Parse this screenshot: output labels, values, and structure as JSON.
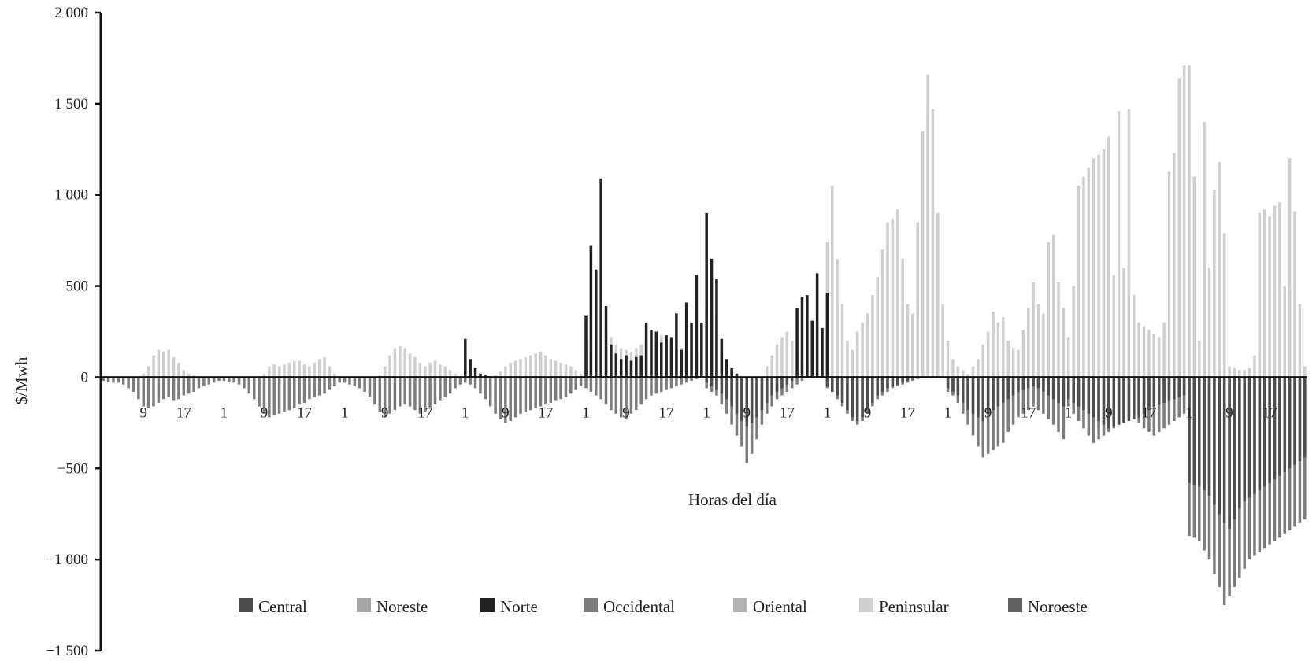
{
  "chart_data": {
    "type": "bar",
    "stacked": false,
    "title": "",
    "xlabel": "Horas del día",
    "ylabel": "$/Mwh",
    "ylim": [
      -1500,
      2000
    ],
    "yticks": [
      -1500,
      -1000,
      -500,
      0,
      500,
      1000,
      1500,
      2000
    ],
    "ytick_labels": [
      "−1 500",
      "−1 000",
      "−500",
      "0",
      "500",
      "1 000",
      "1 500",
      "2 000"
    ],
    "x_tick_hours": [
      1,
      9,
      17
    ],
    "days": 10,
    "hours_per_day": 24,
    "grid": false,
    "legend_position": "bottom",
    "series": [
      {
        "name": "Central",
        "color": "#4d4d4d"
      },
      {
        "name": "Noreste",
        "color": "#a8a8a8"
      },
      {
        "name": "Norte",
        "color": "#222222"
      },
      {
        "name": "Occidental",
        "color": "#7c7c7c"
      },
      {
        "name": "Oriental",
        "color": "#b2b2b2"
      },
      {
        "name": "Peninsular",
        "color": "#cfcfcf"
      },
      {
        "name": "Noroeste",
        "color": "#606060"
      }
    ],
    "daily_profile": [
      {
        "day": 1,
        "Peninsular": [
          0,
          0,
          0,
          0,
          0,
          0,
          0,
          0,
          20,
          60,
          120,
          150,
          140,
          150,
          110,
          80,
          40,
          20,
          10,
          0,
          0,
          0,
          0,
          0
        ],
        "Occidental": [
          -20,
          -25,
          -30,
          -30,
          -40,
          -60,
          -80,
          -120,
          -160,
          -170,
          -160,
          -140,
          -120,
          -110,
          -130,
          -120,
          -100,
          -90,
          -80,
          -60,
          -50,
          -40,
          -30,
          -20
        ]
      },
      {
        "day": 2,
        "Peninsular": [
          0,
          0,
          0,
          0,
          0,
          0,
          0,
          0,
          20,
          60,
          70,
          60,
          70,
          80,
          90,
          90,
          70,
          60,
          80,
          100,
          110,
          60,
          20,
          0
        ],
        "Occidental": [
          -20,
          -25,
          -30,
          -40,
          -60,
          -90,
          -120,
          -160,
          -200,
          -220,
          -210,
          -200,
          -190,
          -180,
          -170,
          -150,
          -140,
          -120,
          -110,
          -100,
          -90,
          -70,
          -50,
          -30
        ]
      },
      {
        "day": 3,
        "Peninsular": [
          0,
          0,
          0,
          0,
          0,
          0,
          0,
          10,
          60,
          120,
          160,
          170,
          160,
          130,
          110,
          80,
          60,
          80,
          90,
          70,
          60,
          40,
          20,
          0
        ],
        "Occidental": [
          -30,
          -40,
          -50,
          -60,
          -80,
          -110,
          -150,
          -190,
          -220,
          -200,
          -180,
          -160,
          -150,
          -160,
          -180,
          -200,
          -190,
          -170,
          -150,
          -130,
          -110,
          -90,
          -60,
          -40
        ]
      },
      {
        "day": 4,
        "Peninsular": [
          0,
          0,
          0,
          0,
          0,
          0,
          10,
          30,
          60,
          80,
          90,
          100,
          110,
          120,
          130,
          140,
          120,
          100,
          90,
          80,
          70,
          60,
          40,
          20
        ],
        "Occidental": [
          -30,
          -40,
          -60,
          -90,
          -120,
          -160,
          -200,
          -230,
          -250,
          -240,
          -220,
          -200,
          -190,
          -180,
          -170,
          -160,
          -150,
          -140,
          -130,
          -120,
          -110,
          -90,
          -70,
          -50
        ],
        "Norte": [
          210,
          100,
          50,
          20,
          10,
          0,
          0,
          0,
          0,
          0,
          0,
          0,
          0,
          0,
          0,
          0,
          0,
          0,
          0,
          0,
          0,
          0,
          0,
          0
        ]
      },
      {
        "day": 5,
        "Norte": [
          340,
          720,
          590,
          1090,
          390,
          180,
          130,
          100,
          120,
          90,
          110,
          120,
          300,
          260,
          250,
          190,
          230,
          220,
          350,
          150,
          410,
          300,
          560,
          300
        ],
        "Peninsular": [
          150,
          180,
          200,
          230,
          250,
          220,
          180,
          160,
          150,
          140,
          160,
          180,
          200,
          220,
          240,
          230,
          200,
          180,
          170,
          160,
          150,
          140,
          130,
          120
        ],
        "Occidental": [
          -60,
          -80,
          -100,
          -120,
          -150,
          -180,
          -200,
          -220,
          -230,
          -200,
          -180,
          -150,
          -120,
          -100,
          -90,
          -80,
          -70,
          -60,
          -50,
          -40,
          -30,
          -20,
          -10,
          0
        ]
      },
      {
        "day": 6,
        "Norte": [
          900,
          650,
          540,
          210,
          100,
          50,
          20,
          0,
          0,
          0,
          0,
          0,
          0,
          0,
          0,
          0,
          0,
          0,
          380,
          440,
          450,
          310,
          570,
          270
        ],
        "Peninsular": [
          400,
          350,
          300,
          150,
          80,
          40,
          20,
          0,
          0,
          0,
          0,
          0,
          60,
          120,
          180,
          220,
          250,
          200,
          150,
          100,
          80,
          60,
          40,
          20
        ],
        "Central": [
          -30,
          -50,
          -70,
          -90,
          -120,
          -160,
          -200,
          -240,
          -270,
          -250,
          -220,
          -180,
          -140,
          -100,
          -80,
          -60,
          -40,
          -20,
          0,
          0,
          0,
          0,
          0,
          0
        ],
        "Occidental": [
          -60,
          -80,
          -100,
          -150,
          -200,
          -260,
          -320,
          -380,
          -470,
          -420,
          -340,
          -260,
          -200,
          -160,
          -120,
          -100,
          -80,
          -60,
          -40,
          -20,
          0,
          0,
          0,
          0
        ]
      },
      {
        "day": 7,
        "Norte": [
          460,
          0,
          0,
          0,
          0,
          0,
          0,
          0,
          0,
          0,
          0,
          0,
          0,
          0,
          0,
          0,
          0,
          0,
          0,
          0,
          0,
          0,
          0,
          0
        ],
        "Peninsular": [
          740,
          1050,
          650,
          400,
          200,
          150,
          250,
          300,
          350,
          450,
          550,
          700,
          850,
          870,
          920,
          650,
          400,
          350,
          850,
          1350,
          1660,
          1470,
          900,
          400
        ],
        "Central": [
          -50,
          -80,
          -100,
          -140,
          -180,
          -220,
          -240,
          -220,
          -180,
          -140,
          -100,
          -80,
          -60,
          -50,
          -40,
          -30,
          -20,
          -10,
          0,
          0,
          0,
          0,
          0,
          0
        ],
        "Occidental": [
          -60,
          -80,
          -120,
          -160,
          -200,
          -240,
          -260,
          -240,
          -200,
          -160,
          -120,
          -100,
          -80,
          -60,
          -50,
          -40,
          -30,
          -20,
          -10,
          0,
          0,
          0,
          0,
          0
        ]
      },
      {
        "day": 8,
        "Peninsular": [
          200,
          100,
          60,
          40,
          20,
          60,
          100,
          180,
          250,
          360,
          300,
          330,
          200,
          160,
          150,
          260,
          380,
          520,
          400,
          350,
          740,
          780,
          520,
          380
        ],
        "Central": [
          -60,
          -80,
          -100,
          -140,
          -180,
          -200,
          -220,
          -240,
          -200,
          -180,
          -160,
          -140,
          -120,
          -100,
          -80,
          -70,
          -60,
          -50,
          -60,
          -80,
          -100,
          -120,
          -140,
          -160
        ],
        "Occidental": [
          -80,
          -100,
          -140,
          -200,
          -260,
          -320,
          -380,
          -440,
          -420,
          -400,
          -380,
          -360,
          -300,
          -260,
          -220,
          -200,
          -180,
          -160,
          -180,
          -200,
          -230,
          -260,
          -300,
          -340
        ]
      },
      {
        "day": 9,
        "Peninsular": [
          220,
          500,
          1050,
          1100,
          1150,
          1200,
          1220,
          1250,
          1320,
          560,
          1460,
          600,
          1470,
          450,
          300,
          280,
          260,
          240,
          220,
          300,
          1130,
          1230,
          1640,
          1710
        ],
        "Central": [
          -120,
          -140,
          -160,
          -180,
          -200,
          -220,
          -240,
          -260,
          -280,
          -270,
          -260,
          -250,
          -240,
          -230,
          -220,
          -200,
          -180,
          -160,
          -150,
          -140,
          -130,
          -120,
          -110,
          -100
        ],
        "Occidental": [
          -160,
          -200,
          -240,
          -280,
          -320,
          -360,
          -340,
          -320,
          -300,
          -280,
          -260,
          -240,
          -220,
          -200,
          -250,
          -280,
          -300,
          -320,
          -300,
          -280,
          -260,
          -240,
          -220,
          -200
        ]
      },
      {
        "day": 10,
        "Peninsular": [
          1710,
          1100,
          200,
          1400,
          600,
          1030,
          1180,
          790,
          60,
          50,
          40,
          40,
          50,
          120,
          900,
          920,
          880,
          940,
          960,
          500,
          1200,
          910,
          400,
          60
        ],
        "Central": [
          -580,
          -590,
          -600,
          -620,
          -650,
          -700,
          -750,
          -800,
          -830,
          -780,
          -720,
          -680,
          -660,
          -640,
          -620,
          -600,
          -580,
          -560,
          -540,
          -520,
          -500,
          -480,
          -460,
          -440
        ],
        "Occidental": [
          -870,
          -880,
          -900,
          -950,
          -1000,
          -1080,
          -1150,
          -1250,
          -1200,
          -1150,
          -1100,
          -1050,
          -1000,
          -980,
          -960,
          -940,
          -920,
          -900,
          -880,
          -860,
          -840,
          -820,
          -800,
          -780
        ]
      }
    ]
  }
}
